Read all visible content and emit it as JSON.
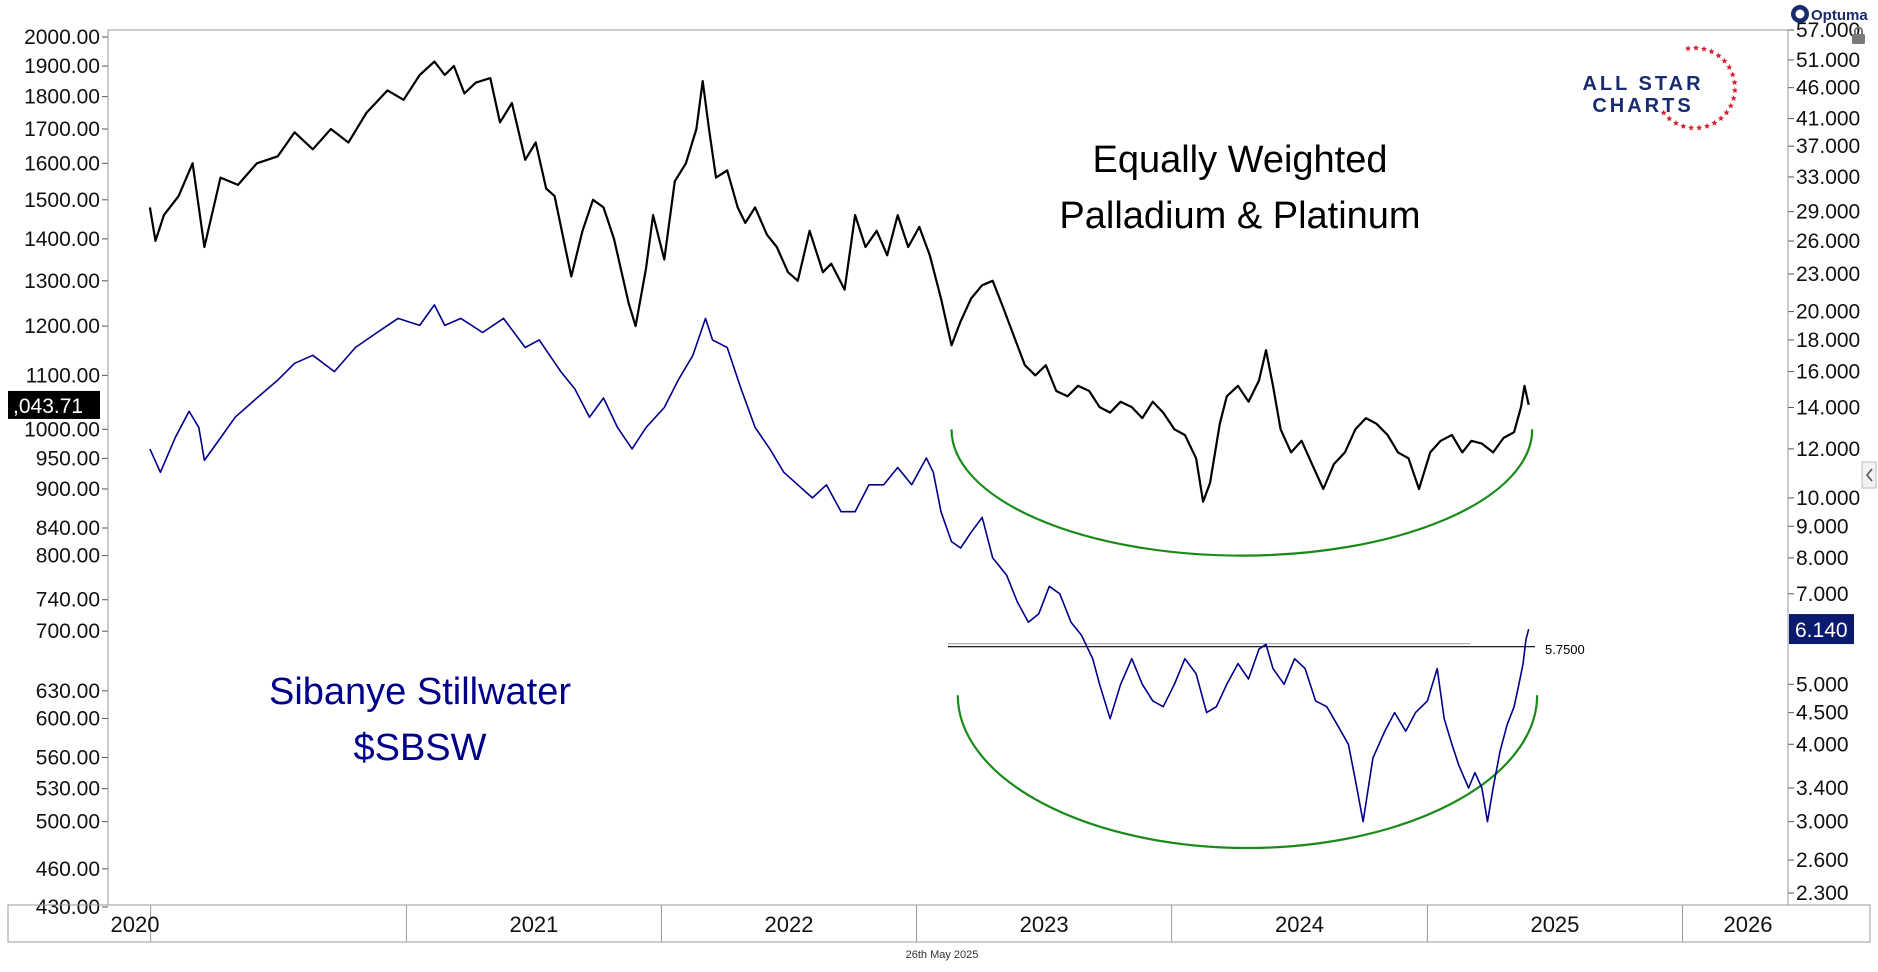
{
  "colors": {
    "background": "#ffffff",
    "frame": "#9a9a9a",
    "palladium_platinum_line": "#000000",
    "sibanye_line": "#00008b",
    "arc": "#1a8a1a",
    "last_value_tag": "#000000",
    "sbsw_value_tag": "#0a1a6e",
    "logo_red": "#d6202f",
    "logo_navy": "#1a2b6d"
  },
  "branding": {
    "optuma_label": "Optuma",
    "logo_line1": "ALL STAR",
    "logo_line2": "CHARTS",
    "date_footer": "26th May 2025"
  },
  "icons": {
    "lock": "lock-icon",
    "collapse": "chevron-left-icon",
    "optuma": "optuma-logo-icon"
  },
  "chart_data": {
    "type": "line",
    "x_range": [
      "2019-11-01",
      "2026-06-01"
    ],
    "x_tick_labels": [
      "2020",
      "2021",
      "2022",
      "2023",
      "2024",
      "2025",
      "2026"
    ],
    "annotations": [
      {
        "name": "title",
        "lines": [
          "Equally Weighted",
          "Palladium & Platinum"
        ],
        "color": "#000000"
      },
      {
        "name": "sbsw-label",
        "lines": [
          "Sibanye Stillwater",
          "$SBSW"
        ],
        "color": "#00008b"
      },
      {
        "name": "resistance-label",
        "text": "5.7500"
      }
    ],
    "horizontal_lines": [
      {
        "name": "resistance-line",
        "axis": "right",
        "value": 5.75,
        "from": "2023-02-15",
        "to": "2025-03-31"
      }
    ],
    "arcs": [
      {
        "name": "palladium-base-arc",
        "axis": "left",
        "from": "2023-02-20",
        "to": "2025-05-31",
        "top": 1000,
        "bottom": 800
      },
      {
        "name": "sibanye-base-arc",
        "axis": "right",
        "from": "2023-03-01",
        "to": "2025-06-07",
        "top": 4.8,
        "bottom": 2.72
      }
    ],
    "axes": {
      "left": {
        "scale": "log",
        "range": [
          430,
          2000
        ],
        "tick_labels": [
          "2000.00",
          "1900.00",
          "1800.00",
          "1700.00",
          "1600.00",
          "1500.00",
          "1400.00",
          "1300.00",
          "1200.00",
          "1100.00",
          "1000.00",
          "950.00",
          "900.00",
          "840.00",
          "800.00",
          "740.00",
          "700.00",
          "630.00",
          "600.00",
          "560.00",
          "530.00",
          "500.00",
          "460.00",
          "430.00"
        ],
        "last_value": ",043.71"
      },
      "right": {
        "scale": "log",
        "range": [
          2.3,
          57
        ],
        "tick_labels": [
          "57.000",
          "51.000",
          "46.000",
          "41.000",
          "37.000",
          "33.000",
          "29.000",
          "26.000",
          "23.000",
          "20.000",
          "18.000",
          "16.000",
          "14.000",
          "12.000",
          "10.000",
          "9.000",
          "8.000",
          "7.000",
          "5.000",
          "4.500",
          "4.000",
          "3.400",
          "3.000",
          "2.600",
          "2.300"
        ],
        "last_value": "6.140"
      }
    },
    "series": [
      {
        "name": "Equally Weighted Palladium & Platinum",
        "axis": "left",
        "points": [
          [
            "2019-12-31",
            1480
          ],
          [
            "2020-01-08",
            1395
          ],
          [
            "2020-01-20",
            1460
          ],
          [
            "2020-02-10",
            1510
          ],
          [
            "2020-03-01",
            1600
          ],
          [
            "2020-03-18",
            1380
          ],
          [
            "2020-04-10",
            1560
          ],
          [
            "2020-05-05",
            1540
          ],
          [
            "2020-06-01",
            1600
          ],
          [
            "2020-07-01",
            1620
          ],
          [
            "2020-07-25",
            1690
          ],
          [
            "2020-08-20",
            1640
          ],
          [
            "2020-09-15",
            1700
          ],
          [
            "2020-10-10",
            1660
          ],
          [
            "2020-11-05",
            1750
          ],
          [
            "2020-12-05",
            1820
          ],
          [
            "2020-12-28",
            1790
          ],
          [
            "2021-01-20",
            1870
          ],
          [
            "2021-02-10",
            1915
          ],
          [
            "2021-02-25",
            1870
          ],
          [
            "2021-03-10",
            1900
          ],
          [
            "2021-03-25",
            1810
          ],
          [
            "2021-04-10",
            1845
          ],
          [
            "2021-05-01",
            1860
          ],
          [
            "2021-05-15",
            1720
          ],
          [
            "2021-06-01",
            1780
          ],
          [
            "2021-06-20",
            1610
          ],
          [
            "2021-07-05",
            1660
          ],
          [
            "2021-07-20",
            1530
          ],
          [
            "2021-08-01",
            1510
          ],
          [
            "2021-08-15",
            1390
          ],
          [
            "2021-08-25",
            1310
          ],
          [
            "2021-09-10",
            1420
          ],
          [
            "2021-09-25",
            1500
          ],
          [
            "2021-10-10",
            1480
          ],
          [
            "2021-10-25",
            1400
          ],
          [
            "2021-11-05",
            1320
          ],
          [
            "2021-11-15",
            1250
          ],
          [
            "2021-11-25",
            1200
          ],
          [
            "2021-12-10",
            1330
          ],
          [
            "2021-12-20",
            1460
          ],
          [
            "2022-01-05",
            1350
          ],
          [
            "2022-01-20",
            1550
          ],
          [
            "2022-02-05",
            1600
          ],
          [
            "2022-02-20",
            1700
          ],
          [
            "2022-03-01",
            1850
          ],
          [
            "2022-03-10",
            1700
          ],
          [
            "2022-03-20",
            1560
          ],
          [
            "2022-04-05",
            1580
          ],
          [
            "2022-04-20",
            1480
          ],
          [
            "2022-05-01",
            1440
          ],
          [
            "2022-05-15",
            1480
          ],
          [
            "2022-06-01",
            1410
          ],
          [
            "2022-06-15",
            1380
          ],
          [
            "2022-07-01",
            1320
          ],
          [
            "2022-07-15",
            1300
          ],
          [
            "2022-08-01",
            1420
          ],
          [
            "2022-08-20",
            1320
          ],
          [
            "2022-09-01",
            1340
          ],
          [
            "2022-09-20",
            1280
          ],
          [
            "2022-10-05",
            1460
          ],
          [
            "2022-10-20",
            1380
          ],
          [
            "2022-11-05",
            1420
          ],
          [
            "2022-11-20",
            1360
          ],
          [
            "2022-12-05",
            1460
          ],
          [
            "2022-12-20",
            1380
          ],
          [
            "2023-01-05",
            1430
          ],
          [
            "2023-01-20",
            1360
          ],
          [
            "2023-02-05",
            1260
          ],
          [
            "2023-02-20",
            1160
          ],
          [
            "2023-03-05",
            1210
          ],
          [
            "2023-03-20",
            1260
          ],
          [
            "2023-04-05",
            1290
          ],
          [
            "2023-04-20",
            1300
          ],
          [
            "2023-05-05",
            1240
          ],
          [
            "2023-05-20",
            1180
          ],
          [
            "2023-06-05",
            1120
          ],
          [
            "2023-06-20",
            1100
          ],
          [
            "2023-07-05",
            1120
          ],
          [
            "2023-07-20",
            1070
          ],
          [
            "2023-08-05",
            1060
          ],
          [
            "2023-08-20",
            1080
          ],
          [
            "2023-09-05",
            1070
          ],
          [
            "2023-09-20",
            1040
          ],
          [
            "2023-10-05",
            1030
          ],
          [
            "2023-10-20",
            1050
          ],
          [
            "2023-11-05",
            1040
          ],
          [
            "2023-11-20",
            1020
          ],
          [
            "2023-12-05",
            1050
          ],
          [
            "2023-12-20",
            1030
          ],
          [
            "2024-01-05",
            1000
          ],
          [
            "2024-01-20",
            990
          ],
          [
            "2024-02-05",
            950
          ],
          [
            "2024-02-15",
            880
          ],
          [
            "2024-02-25",
            910
          ],
          [
            "2024-03-10",
            1010
          ],
          [
            "2024-03-20",
            1060
          ],
          [
            "2024-04-05",
            1080
          ],
          [
            "2024-04-20",
            1050
          ],
          [
            "2024-05-05",
            1090
          ],
          [
            "2024-05-15",
            1150
          ],
          [
            "2024-05-25",
            1080
          ],
          [
            "2024-06-05",
            1000
          ],
          [
            "2024-06-20",
            960
          ],
          [
            "2024-07-05",
            980
          ],
          [
            "2024-07-20",
            940
          ],
          [
            "2024-08-05",
            900
          ],
          [
            "2024-08-20",
            940
          ],
          [
            "2024-09-05",
            960
          ],
          [
            "2024-09-20",
            1000
          ],
          [
            "2024-10-05",
            1020
          ],
          [
            "2024-10-20",
            1010
          ],
          [
            "2024-11-05",
            990
          ],
          [
            "2024-11-20",
            960
          ],
          [
            "2024-12-05",
            950
          ],
          [
            "2024-12-20",
            900
          ],
          [
            "2025-01-05",
            960
          ],
          [
            "2025-01-20",
            980
          ],
          [
            "2025-02-05",
            990
          ],
          [
            "2025-02-20",
            960
          ],
          [
            "2025-03-05",
            980
          ],
          [
            "2025-03-20",
            975
          ],
          [
            "2025-04-05",
            960
          ],
          [
            "2025-04-20",
            985
          ],
          [
            "2025-05-05",
            995
          ],
          [
            "2025-05-15",
            1040
          ],
          [
            "2025-05-20",
            1080
          ],
          [
            "2025-05-26",
            1044
          ]
        ]
      },
      {
        "name": "Sibanye Stillwater $SBSW",
        "axis": "right",
        "points": [
          [
            "2019-12-31",
            12.0
          ],
          [
            "2020-01-15",
            11.0
          ],
          [
            "2020-02-05",
            12.5
          ],
          [
            "2020-02-25",
            13.8
          ],
          [
            "2020-03-10",
            13.0
          ],
          [
            "2020-03-18",
            11.5
          ],
          [
            "2020-04-10",
            12.5
          ],
          [
            "2020-05-01",
            13.5
          ],
          [
            "2020-06-01",
            14.5
          ],
          [
            "2020-07-01",
            15.5
          ],
          [
            "2020-07-25",
            16.5
          ],
          [
            "2020-08-20",
            17.0
          ],
          [
            "2020-09-20",
            16.0
          ],
          [
            "2020-10-20",
            17.5
          ],
          [
            "2020-11-20",
            18.5
          ],
          [
            "2020-12-20",
            19.5
          ],
          [
            "2021-01-20",
            19.0
          ],
          [
            "2021-02-10",
            20.5
          ],
          [
            "2021-02-25",
            19.0
          ],
          [
            "2021-03-20",
            19.5
          ],
          [
            "2021-04-20",
            18.5
          ],
          [
            "2021-05-20",
            19.5
          ],
          [
            "2021-06-20",
            17.5
          ],
          [
            "2021-07-10",
            18.0
          ],
          [
            "2021-08-10",
            16.0
          ],
          [
            "2021-08-30",
            15.0
          ],
          [
            "2021-09-20",
            13.5
          ],
          [
            "2021-10-10",
            14.5
          ],
          [
            "2021-10-30",
            13.0
          ],
          [
            "2021-11-20",
            12.0
          ],
          [
            "2021-12-10",
            13.0
          ],
          [
            "2022-01-05",
            14.0
          ],
          [
            "2022-01-25",
            15.5
          ],
          [
            "2022-02-15",
            17.0
          ],
          [
            "2022-03-05",
            19.5
          ],
          [
            "2022-03-15",
            18.0
          ],
          [
            "2022-04-05",
            17.5
          ],
          [
            "2022-04-25",
            15.0
          ],
          [
            "2022-05-15",
            13.0
          ],
          [
            "2022-06-05",
            12.0
          ],
          [
            "2022-06-25",
            11.0
          ],
          [
            "2022-07-15",
            10.5
          ],
          [
            "2022-08-05",
            10.0
          ],
          [
            "2022-08-25",
            10.5
          ],
          [
            "2022-09-15",
            9.5
          ],
          [
            "2022-10-05",
            9.5
          ],
          [
            "2022-10-25",
            10.5
          ],
          [
            "2022-11-15",
            10.5
          ],
          [
            "2022-12-05",
            11.2
          ],
          [
            "2022-12-25",
            10.5
          ],
          [
            "2023-01-15",
            11.6
          ],
          [
            "2023-01-25",
            11.0
          ],
          [
            "2023-02-05",
            9.5
          ],
          [
            "2023-02-20",
            8.5
          ],
          [
            "2023-03-05",
            8.3
          ],
          [
            "2023-03-20",
            8.8
          ],
          [
            "2023-04-05",
            9.3
          ],
          [
            "2023-04-20",
            8.0
          ],
          [
            "2023-05-10",
            7.5
          ],
          [
            "2023-05-25",
            6.8
          ],
          [
            "2023-06-10",
            6.3
          ],
          [
            "2023-06-25",
            6.5
          ],
          [
            "2023-07-10",
            7.2
          ],
          [
            "2023-07-25",
            7.0
          ],
          [
            "2023-08-10",
            6.3
          ],
          [
            "2023-08-25",
            6.0
          ],
          [
            "2023-09-10",
            5.5
          ],
          [
            "2023-09-20",
            5.0
          ],
          [
            "2023-10-05",
            4.4
          ],
          [
            "2023-10-20",
            5.0
          ],
          [
            "2023-11-05",
            5.5
          ],
          [
            "2023-11-20",
            5.0
          ],
          [
            "2023-12-05",
            4.7
          ],
          [
            "2023-12-20",
            4.6
          ],
          [
            "2024-01-05",
            5.0
          ],
          [
            "2024-01-20",
            5.5
          ],
          [
            "2024-02-05",
            5.2
          ],
          [
            "2024-02-20",
            4.5
          ],
          [
            "2024-03-05",
            4.6
          ],
          [
            "2024-03-20",
            5.0
          ],
          [
            "2024-04-05",
            5.4
          ],
          [
            "2024-04-20",
            5.1
          ],
          [
            "2024-05-05",
            5.7
          ],
          [
            "2024-05-15",
            5.8
          ],
          [
            "2024-05-25",
            5.3
          ],
          [
            "2024-06-10",
            5.0
          ],
          [
            "2024-06-25",
            5.5
          ],
          [
            "2024-07-10",
            5.3
          ],
          [
            "2024-07-25",
            4.7
          ],
          [
            "2024-08-10",
            4.6
          ],
          [
            "2024-08-25",
            4.3
          ],
          [
            "2024-09-10",
            4.0
          ],
          [
            "2024-09-20",
            3.5
          ],
          [
            "2024-10-01",
            3.0
          ],
          [
            "2024-10-15",
            3.8
          ],
          [
            "2024-11-01",
            4.2
          ],
          [
            "2024-11-15",
            4.5
          ],
          [
            "2024-12-01",
            4.2
          ],
          [
            "2024-12-15",
            4.5
          ],
          [
            "2025-01-01",
            4.7
          ],
          [
            "2025-01-15",
            5.3
          ],
          [
            "2025-01-25",
            4.4
          ],
          [
            "2025-02-05",
            4.0
          ],
          [
            "2025-02-15",
            3.7
          ],
          [
            "2025-03-01",
            3.4
          ],
          [
            "2025-03-10",
            3.6
          ],
          [
            "2025-03-20",
            3.4
          ],
          [
            "2025-03-28",
            3.0
          ],
          [
            "2025-04-05",
            3.4
          ],
          [
            "2025-04-15",
            3.9
          ],
          [
            "2025-04-25",
            4.3
          ],
          [
            "2025-05-05",
            4.6
          ],
          [
            "2025-05-12",
            5.0
          ],
          [
            "2025-05-18",
            5.4
          ],
          [
            "2025-05-22",
            5.9
          ],
          [
            "2025-05-26",
            6.14
          ]
        ]
      }
    ]
  }
}
